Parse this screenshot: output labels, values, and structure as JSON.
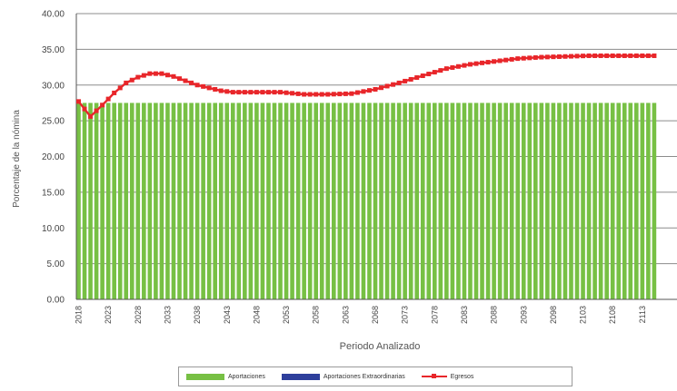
{
  "chart_data": {
    "type": "bar",
    "xlabel": "Periodo Analizado",
    "ylabel": "Porcentaje de la nómina",
    "ylim": [
      0,
      40
    ],
    "y_ticks": [
      "0.00",
      "5.00",
      "10.00",
      "15.00",
      "20.00",
      "25.00",
      "30.00",
      "35.00",
      "40.00"
    ],
    "grid": true,
    "x_start": 2018,
    "x_end": 2115,
    "x_tick_labels": [
      "2018",
      "2023",
      "2028",
      "2033",
      "2038",
      "2043",
      "2048",
      "2053",
      "2058",
      "2063",
      "2068",
      "2073",
      "2078",
      "2083",
      "2088",
      "2093",
      "2098",
      "2103",
      "2108",
      "2113"
    ],
    "series": [
      {
        "name": "Aportaciones",
        "type": "bar",
        "color": "#77c044",
        "value_all_years": 27.5
      },
      {
        "name": "Aportaciones Extraordinarias",
        "type": "bar",
        "color": "#2e3f9c",
        "value_all_years": 0
      },
      {
        "name": "Egresos",
        "type": "line",
        "color": "#e8262a",
        "points": [
          [
            2018,
            27.7
          ],
          [
            2020,
            25.6
          ],
          [
            2022,
            27.2
          ],
          [
            2024,
            28.9
          ],
          [
            2026,
            30.3
          ],
          [
            2028,
            31.1
          ],
          [
            2030,
            31.6
          ],
          [
            2032,
            31.6
          ],
          [
            2034,
            31.2
          ],
          [
            2036,
            30.6
          ],
          [
            2038,
            30.0
          ],
          [
            2040,
            29.6
          ],
          [
            2042,
            29.2
          ],
          [
            2044,
            29.0
          ],
          [
            2048,
            29.0
          ],
          [
            2052,
            29.0
          ],
          [
            2056,
            28.7
          ],
          [
            2060,
            28.7
          ],
          [
            2064,
            28.8
          ],
          [
            2068,
            29.4
          ],
          [
            2072,
            30.3
          ],
          [
            2076,
            31.3
          ],
          [
            2080,
            32.3
          ],
          [
            2084,
            32.9
          ],
          [
            2088,
            33.3
          ],
          [
            2092,
            33.7
          ],
          [
            2096,
            33.9
          ],
          [
            2100,
            34.0
          ],
          [
            2104,
            34.1
          ],
          [
            2110,
            34.1
          ],
          [
            2115,
            34.1
          ]
        ]
      }
    ],
    "legend_position": "bottom"
  }
}
